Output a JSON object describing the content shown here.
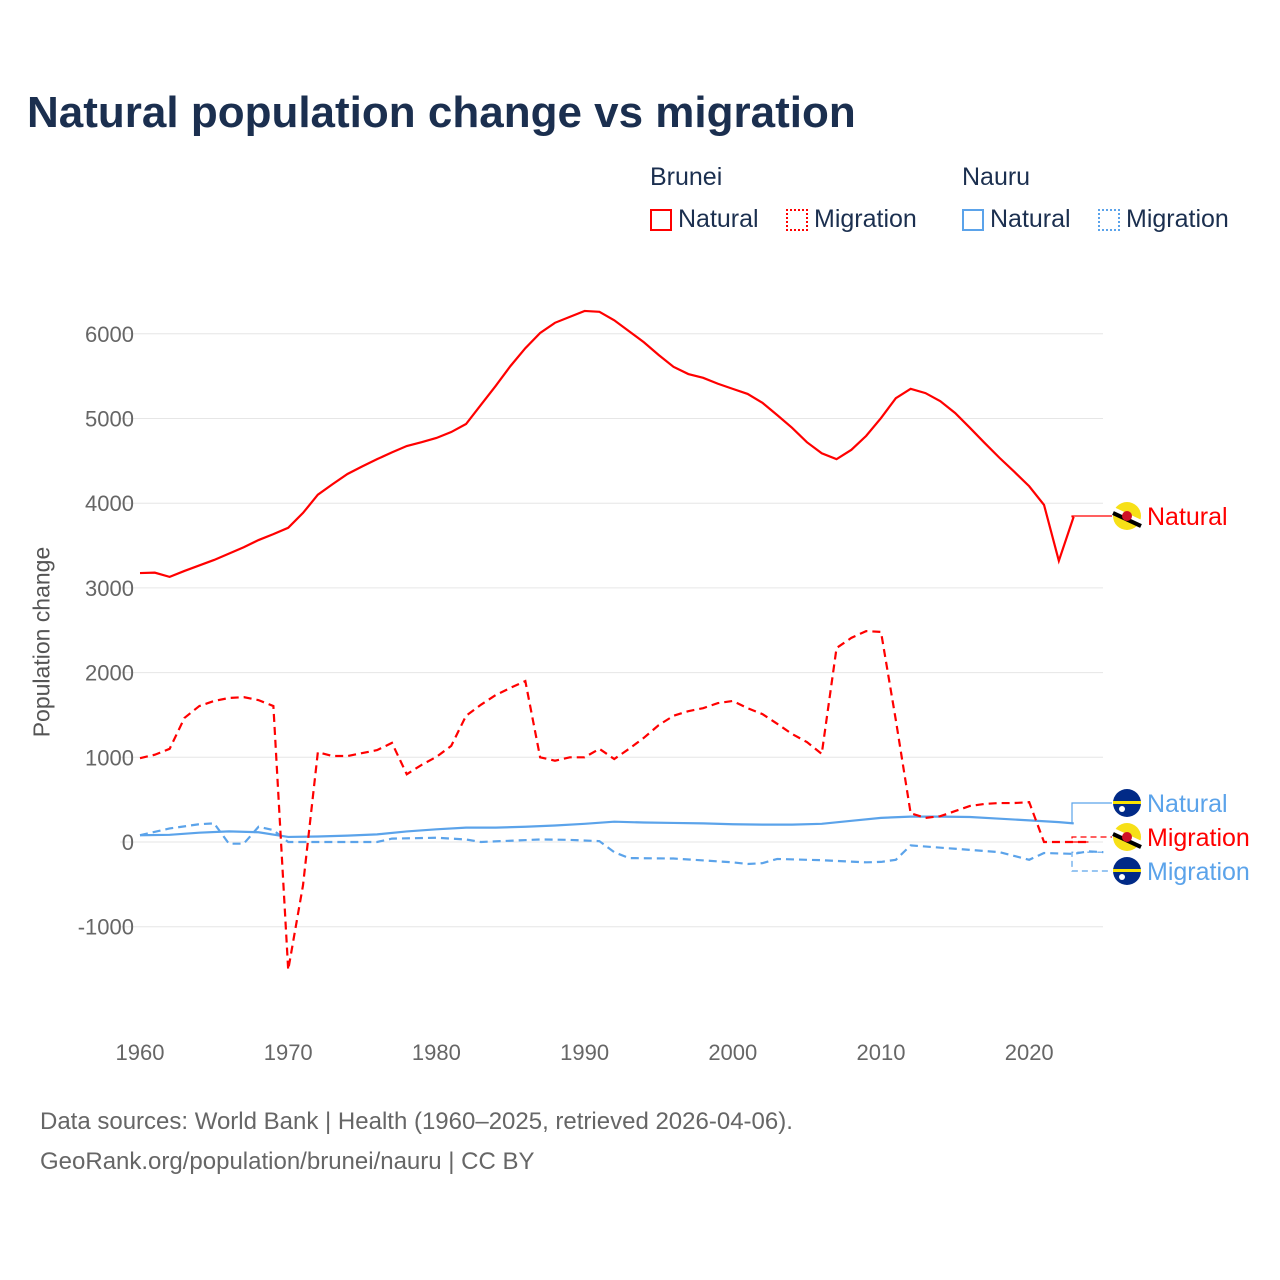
{
  "chart_data": {
    "type": "line",
    "title": "Natural population change vs migration",
    "ylabel": "Population change",
    "xlabel": "",
    "xlim": [
      1960,
      2025
    ],
    "ylim": [
      -1500,
      6300
    ],
    "yticks": [
      -1000,
      0,
      1000,
      2000,
      3000,
      4000,
      5000,
      6000
    ],
    "ytick_labels": [
      "-1000",
      "0",
      "1000",
      "2000",
      "3000",
      "4000",
      "5000",
      "6000"
    ],
    "xticks": [
      1960,
      1970,
      1980,
      1990,
      2000,
      2010,
      2020
    ],
    "xtick_labels": [
      "1960",
      "1970",
      "1980",
      "1990",
      "2000",
      "2010",
      "2020"
    ],
    "grid": true,
    "legend_position": "top-right",
    "legend": {
      "groups": [
        {
          "name": "Brunei",
          "items": [
            "Natural",
            "Migration"
          ]
        },
        {
          "name": "Nauru",
          "items": [
            "Natural",
            "Migration"
          ]
        }
      ]
    },
    "series": [
      {
        "name": "Brunei Natural",
        "label": "Natural",
        "color": "#ff0000",
        "dash": false,
        "flag": "brunei-flag",
        "x": [
          1960,
          1961,
          1962,
          1963,
          1964,
          1965,
          1966,
          1967,
          1968,
          1969,
          1970,
          1971,
          1972,
          1973,
          1974,
          1975,
          1976,
          1977,
          1978,
          1979,
          1980,
          1981,
          1982,
          1983,
          1984,
          1985,
          1986,
          1987,
          1988,
          1989,
          1990,
          1991,
          1992,
          1993,
          1994,
          1995,
          1996,
          1997,
          1998,
          1999,
          2000,
          2001,
          2002,
          2003,
          2004,
          2005,
          2006,
          2007,
          2008,
          2009,
          2010,
          2011,
          2012,
          2013,
          2014,
          2015,
          2016,
          2017,
          2018,
          2019,
          2020,
          2021,
          2022,
          2023
        ],
        "y": [
          3175,
          3180,
          3130,
          3200,
          3265,
          3330,
          3405,
          3480,
          3565,
          3635,
          3710,
          3885,
          4100,
          4225,
          4345,
          4435,
          4520,
          4600,
          4675,
          4720,
          4770,
          4840,
          4935,
          5160,
          5385,
          5620,
          5830,
          6010,
          6130,
          6200,
          6270,
          6260,
          6160,
          6030,
          5900,
          5750,
          5610,
          5525,
          5480,
          5410,
          5350,
          5290,
          5185,
          5040,
          4890,
          4720,
          4590,
          4520,
          4630,
          4795,
          5005,
          5240,
          5350,
          5300,
          5205,
          5065,
          4890,
          4710,
          4535,
          4370,
          4200,
          3980,
          3320,
          3840
        ]
      },
      {
        "name": "Brunei Migration",
        "label": "Migration",
        "color": "#ff0000",
        "dash": true,
        "flag": "brunei-flag",
        "x": [
          1960,
          1961,
          1962,
          1963,
          1964,
          1965,
          1966,
          1967,
          1968,
          1969,
          1970,
          1971,
          1972,
          1973,
          1974,
          1975,
          1976,
          1977,
          1978,
          1979,
          1980,
          1981,
          1982,
          1983,
          1984,
          1985,
          1986,
          1987,
          1988,
          1989,
          1990,
          1991,
          1992,
          1993,
          1994,
          1995,
          1996,
          1997,
          1998,
          1999,
          2000,
          2001,
          2002,
          2003,
          2004,
          2005,
          2006,
          2007,
          2008,
          2009,
          2010,
          2011,
          2012,
          2013,
          2014,
          2015,
          2016,
          2017,
          2018,
          2019,
          2020,
          2021,
          2022,
          2023,
          2024
        ],
        "y": [
          990,
          1030,
          1100,
          1465,
          1605,
          1665,
          1700,
          1710,
          1675,
          1605,
          -1510,
          -510,
          1060,
          1015,
          1015,
          1050,
          1085,
          1170,
          800,
          910,
          1005,
          1135,
          1490,
          1620,
          1735,
          1820,
          1900,
          1000,
          960,
          1000,
          1000,
          1100,
          980,
          1100,
          1230,
          1380,
          1490,
          1545,
          1580,
          1640,
          1665,
          1580,
          1510,
          1395,
          1275,
          1180,
          1040,
          2290,
          2410,
          2490,
          2480,
          1440,
          340,
          285,
          305,
          365,
          425,
          450,
          460,
          460,
          470,
          0,
          0,
          0,
          0
        ]
      },
      {
        "name": "Nauru Natural",
        "label": "Natural",
        "color": "#5ba3ea",
        "dash": false,
        "flag": "nauru-flag",
        "x": [
          1960,
          1962,
          1964,
          1966,
          1968,
          1970,
          1972,
          1974,
          1976,
          1978,
          1980,
          1982,
          1984,
          1986,
          1988,
          1990,
          1992,
          1994,
          1996,
          1998,
          2000,
          2002,
          2004,
          2006,
          2008,
          2010,
          2012,
          2014,
          2016,
          2018,
          2020,
          2022,
          2023
        ],
        "y": [
          80,
          85,
          110,
          125,
          115,
          60,
          65,
          75,
          90,
          125,
          150,
          170,
          170,
          180,
          195,
          215,
          240,
          230,
          225,
          220,
          210,
          205,
          205,
          215,
          250,
          285,
          300,
          300,
          295,
          275,
          255,
          235,
          220
        ]
      },
      {
        "name": "Nauru Migration",
        "label": "Migration",
        "color": "#5ba3ea",
        "dash": true,
        "flag": "nauru-flag",
        "x": [
          1960,
          1962,
          1964,
          1965,
          1966,
          1967,
          1968,
          1969,
          1970,
          1972,
          1974,
          1976,
          1977,
          1980,
          1982,
          1983,
          1985,
          1987,
          1989,
          1991,
          1992,
          1993,
          1996,
          2000,
          2001,
          2002,
          2003,
          2006,
          2009,
          2010,
          2011,
          2012,
          2015,
          2018,
          2020,
          2021,
          2023,
          2024,
          2025
        ],
        "y": [
          80,
          160,
          210,
          220,
          -20,
          -20,
          180,
          140,
          0,
          0,
          0,
          0,
          40,
          50,
          30,
          0,
          15,
          30,
          25,
          10,
          -120,
          -190,
          -195,
          -240,
          -260,
          -250,
          -200,
          -215,
          -240,
          -235,
          -210,
          -40,
          -80,
          -120,
          -210,
          -130,
          -140,
          -110,
          -120
        ]
      }
    ],
    "end_labels": [
      "Natural",
      "Migration",
      "Natural",
      "Migration"
    ]
  },
  "legend": {
    "brunei": "Brunei",
    "nauru": "Nauru",
    "natural": "Natural",
    "migration": "Migration"
  },
  "footer": {
    "line1": "Data sources: World Bank | Health (1960–2025, retrieved 2026-04-06).",
    "line2": "GeoRank.org/population/brunei/nauru | CC BY"
  }
}
